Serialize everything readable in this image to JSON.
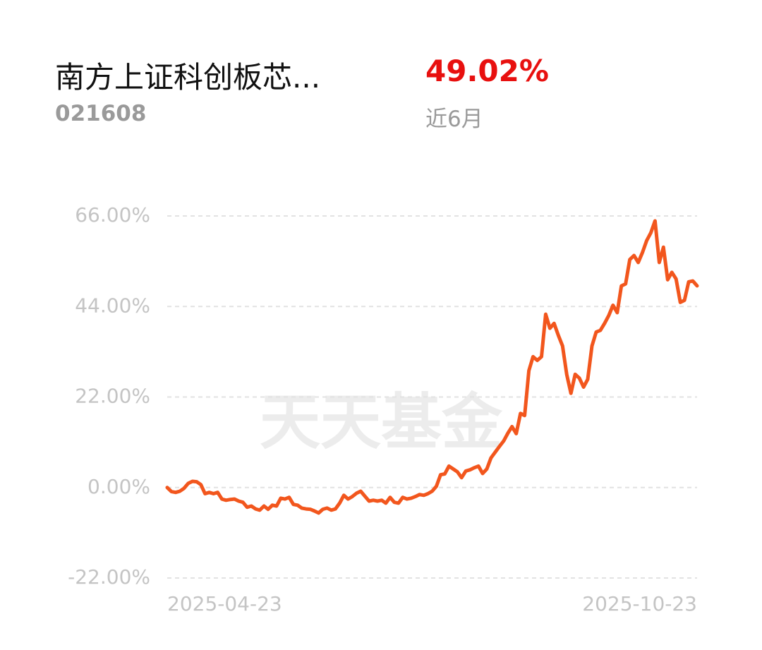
{
  "header": {
    "title": "南方上证科创板芯...",
    "code": "021608",
    "return": "49.02%",
    "period": "近6月"
  },
  "chart_data": {
    "type": "line",
    "watermark": "天天基金",
    "color": "#f2561d",
    "grid": true,
    "ylim": [
      -22,
      66
    ],
    "yticks": [
      {
        "value": -22,
        "label": "-22.00%"
      },
      {
        "value": 0,
        "label": "0.00%"
      },
      {
        "value": 22,
        "label": "22.00%"
      },
      {
        "value": 44,
        "label": "44.00%"
      },
      {
        "value": 66,
        "label": "66.00%"
      }
    ],
    "categories": [
      "2025-04-23",
      null,
      null,
      null,
      null,
      null,
      null,
      null,
      null,
      null,
      null,
      null,
      null,
      null,
      null,
      null,
      null,
      null,
      null,
      null,
      null,
      null,
      null,
      null,
      null,
      null,
      null,
      null,
      null,
      null,
      null,
      null,
      null,
      null,
      null,
      null,
      null,
      null,
      null,
      null,
      null,
      null,
      null,
      null,
      null,
      null,
      null,
      null,
      null,
      null,
      null,
      null,
      null,
      null,
      null,
      null,
      null,
      null,
      null,
      null,
      null,
      null,
      null,
      null,
      null,
      null,
      null,
      null,
      null,
      null,
      null,
      null,
      null,
      null,
      null,
      null,
      null,
      null,
      null,
      null,
      null,
      null,
      null,
      null,
      null,
      null,
      null,
      null,
      null,
      null,
      null,
      null,
      null,
      null,
      null,
      null,
      null,
      null,
      null,
      null,
      null,
      null,
      null,
      null,
      null,
      null,
      null,
      null,
      null,
      null,
      null,
      null,
      null,
      null,
      null,
      null,
      null,
      null,
      null,
      null,
      null,
      null,
      null,
      null,
      null,
      null,
      "2025-10-23"
    ],
    "values": [
      0,
      -1,
      -1.2,
      -0.9,
      -0.2,
      1.0,
      1.5,
      1.4,
      0.7,
      -1.5,
      -1.2,
      -1.5,
      -1.2,
      -2.8,
      -3.1,
      -2.9,
      -2.8,
      -3.3,
      -3.6,
      -4.8,
      -4.5,
      -5.2,
      -5.5,
      -4.5,
      -5.3,
      -4.3,
      -4.5,
      -2.6,
      -2.8,
      -2.4,
      -4.1,
      -4.3,
      -5.0,
      -5.2,
      -5.3,
      -5.7,
      -6.2,
      -5.3,
      -5.0,
      -5.5,
      -5.2,
      -3.8,
      -1.9,
      -2.8,
      -2.2,
      -1.4,
      -0.9,
      -2.1,
      -3.3,
      -3.1,
      -3.3,
      -3.1,
      -3.8,
      -2.4,
      -3.6,
      -3.8,
      -2.4,
      -2.8,
      -2.6,
      -2.2,
      -1.7,
      -1.9,
      -1.5,
      -0.9,
      0.3,
      3.1,
      3.3,
      5.2,
      4.5,
      3.8,
      2.4,
      4.0,
      4.3,
      4.8,
      5.2,
      3.4,
      4.5,
      7.2,
      8.6,
      10.0,
      11.3,
      13.2,
      14.8,
      13.1,
      18.0,
      17.5,
      28.4,
      31.8,
      30.9,
      31.8,
      42.1,
      38.7,
      39.9,
      37.0,
      34.4,
      27.5,
      22.9,
      27.5,
      26.6,
      24.4,
      26.3,
      34.4,
      37.8,
      38.2,
      39.9,
      41.8,
      44.3,
      42.5,
      49.0,
      49.5,
      55.4,
      56.4,
      54.7,
      57.1,
      60.0,
      61.9,
      64.8,
      54.7,
      58.4,
      50.5,
      52.3,
      50.7,
      45.0,
      45.5,
      50.0,
      50.2,
      49.02
    ]
  }
}
